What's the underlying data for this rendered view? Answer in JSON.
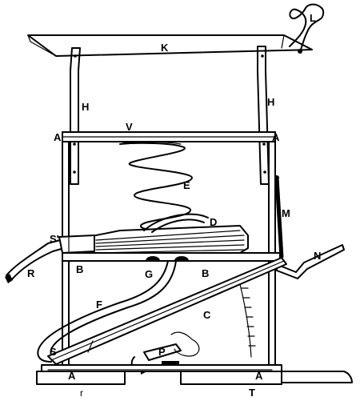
{
  "labels": {
    "top_board": "K",
    "handle": "L",
    "upright_left": "H",
    "upright_right": "H",
    "crossbar": "V",
    "joint_left": "A",
    "joint_right": "A",
    "spring": "E",
    "bellows": "D",
    "rod": "M",
    "lever": "N",
    "nozzle_left": "R",
    "bar_left": "B",
    "bar_right": "B",
    "bearing": "G",
    "hose_end": "S'",
    "hose": "F",
    "sector": "C",
    "hose_bottom": "S",
    "pedal": "P",
    "foot_left": "A",
    "foot_right": "A",
    "base_left": "r",
    "base_right": "T"
  },
  "colors": {
    "ink": "#000000",
    "paper": "#ffffff"
  }
}
